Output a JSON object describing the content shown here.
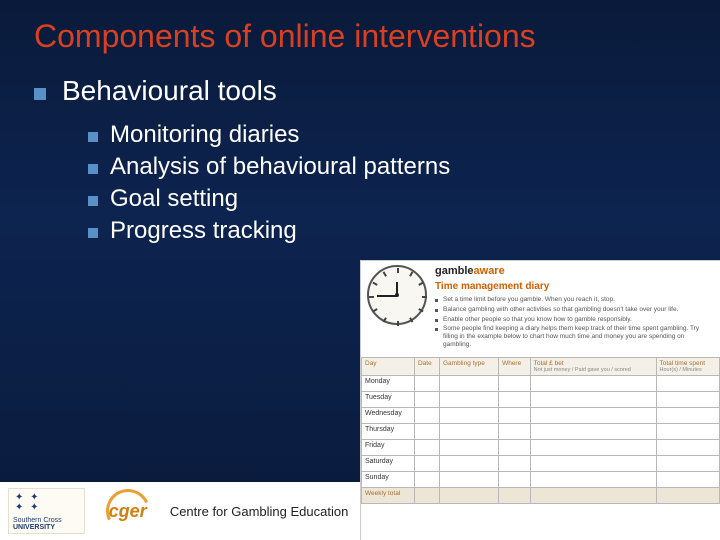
{
  "slide": {
    "title": "Components of online interventions",
    "title_color": "#d84020",
    "background_gradient": [
      "#0a1a3a",
      "#0d2450",
      "#0a1a3a"
    ],
    "bullet_color": "#5a90c8",
    "text_color": "#ffffff",
    "l1_items": [
      {
        "label": "Behavioural tools"
      }
    ],
    "l2_items": [
      {
        "label": "Monitoring diaries"
      },
      {
        "label": "Analysis of behavioural patterns"
      },
      {
        "label": "Goal setting"
      },
      {
        "label": "Progress tracking"
      }
    ]
  },
  "diary_inset": {
    "brand_black": "gamble",
    "brand_orange": "aware",
    "title": "Time management diary",
    "title_color": "#d06000",
    "bullets": [
      "Set a time limit before you gamble. When you reach it, stop.",
      "Balance gambling with other activities so that gambling doesn't take over your life.",
      "Enable other people so that you know how to gamble responsibly.",
      "Some people find keeping a diary helps them keep track of their time spent gambling. Try filling in the example below to chart how much time and money you are spending on gambling."
    ],
    "table": {
      "columns": [
        "Day",
        "Date",
        "Gambling type",
        "Where",
        "Total £ bet",
        "Total time spent"
      ],
      "col_sub": [
        "",
        "",
        "",
        "",
        "Not just money / Paid gave you / scored",
        "Hour(s) / Minutes"
      ],
      "rows": [
        "Monday",
        "Tuesday",
        "Wednesday",
        "Thursday",
        "Friday",
        "Saturday",
        "Sunday"
      ],
      "footer_row": "Weekly total",
      "border_color": "#b8b8b8",
      "header_bg": "#f4f0e8",
      "header_color": "#a67030"
    }
  },
  "footer": {
    "logo1_text_top": "Southern Cross",
    "logo1_text_bottom": "UNIVERSITY",
    "logo2_text": "cger",
    "center_text": "Centre for Gambling Education & Re"
  }
}
